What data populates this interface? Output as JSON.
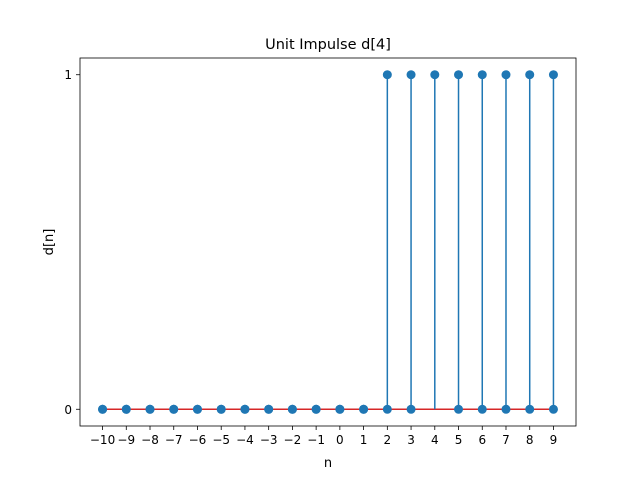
{
  "chart_data": {
    "type": "stem",
    "title": "Unit Impulse d[4]",
    "xlabel": "n",
    "ylabel": "d[n]",
    "x": [
      -10,
      -9,
      -8,
      -7,
      -6,
      -5,
      -4,
      -3,
      -2,
      -1,
      0,
      1,
      2,
      3,
      4,
      5,
      6,
      7,
      8,
      9
    ],
    "x_tick_labels": [
      "−10",
      "−9",
      "−8",
      "−7",
      "−6",
      "−5",
      "−4",
      "−3",
      "−2",
      "−1",
      "0",
      "1",
      "2",
      "3",
      "4",
      "5",
      "6",
      "7",
      "8",
      "9"
    ],
    "series": [
      {
        "values": [
          0,
          0,
          0,
          0,
          0,
          0,
          0,
          0,
          0,
          0,
          0,
          0,
          1,
          1,
          1,
          1,
          1,
          1,
          1,
          1
        ],
        "color": "#1f77b4"
      },
      {
        "values": [
          0,
          0,
          0,
          0,
          0,
          0,
          0,
          0,
          0,
          0,
          0,
          0,
          0,
          0,
          null,
          0,
          0,
          0,
          0,
          0
        ],
        "color": "#1f77b4"
      }
    ],
    "baseline": {
      "y": 0,
      "color": "#d62728"
    },
    "yticks": [
      0,
      1
    ],
    "y_tick_labels": [
      "0",
      "1"
    ],
    "xlim": [
      -10.95,
      9.95
    ],
    "ylim": [
      -0.05,
      1.05
    ],
    "grid": false,
    "legend": "none"
  }
}
